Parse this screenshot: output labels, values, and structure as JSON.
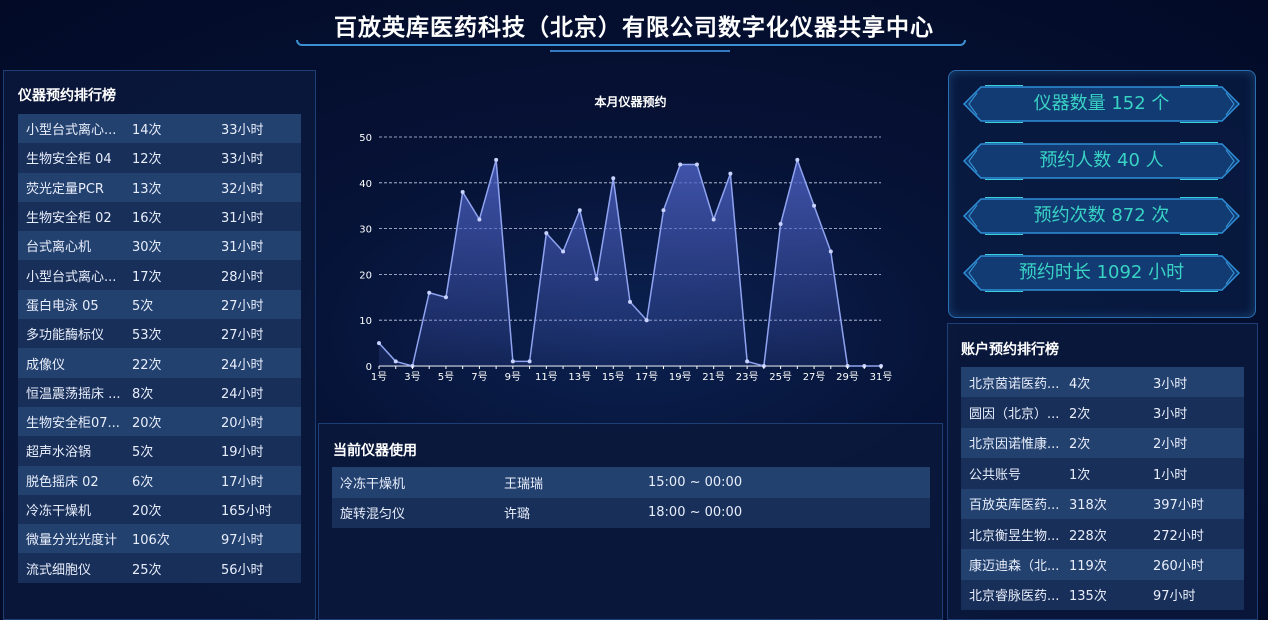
{
  "header": {
    "title": "百放英库医药科技（北京）有限公司数字化仪器共享中心"
  },
  "instrument_ranking": {
    "title": "仪器预约排行榜",
    "rows": [
      {
        "name": "小型台式离心...",
        "count": "14次",
        "hours": "33小时"
      },
      {
        "name": "生物安全柜 04",
        "count": "12次",
        "hours": "33小时"
      },
      {
        "name": "荧光定量PCR",
        "count": "13次",
        "hours": "32小时"
      },
      {
        "name": "生物安全柜 02",
        "count": "16次",
        "hours": "31小时"
      },
      {
        "name": "台式离心机",
        "count": "30次",
        "hours": "31小时"
      },
      {
        "name": "小型台式离心...",
        "count": "17次",
        "hours": "28小时"
      },
      {
        "name": "蛋白电泳 05",
        "count": "5次",
        "hours": "27小时"
      },
      {
        "name": "多功能酶标仪",
        "count": "53次",
        "hours": "27小时"
      },
      {
        "name": "成像仪",
        "count": "22次",
        "hours": "24小时"
      },
      {
        "name": "恒温震荡摇床 ...",
        "count": "8次",
        "hours": "24小时"
      },
      {
        "name": "生物安全柜07...",
        "count": "20次",
        "hours": "20小时"
      },
      {
        "name": "超声水浴锅",
        "count": "5次",
        "hours": "19小时"
      },
      {
        "name": "脱色摇床 02",
        "count": "6次",
        "hours": "17小时"
      },
      {
        "name": "冷冻干燥机",
        "count": "20次",
        "hours": "165小时"
      },
      {
        "name": "微量分光光度计",
        "count": "106次",
        "hours": "97小时"
      },
      {
        "name": "流式细胞仪",
        "count": "25次",
        "hours": "56小时"
      }
    ]
  },
  "chart_data": {
    "type": "area",
    "title": "本月仪器预约",
    "x": [
      "1号",
      "2号",
      "3号",
      "4号",
      "5号",
      "6号",
      "7号",
      "8号",
      "9号",
      "10号",
      "11号",
      "12号",
      "13号",
      "14号",
      "15号",
      "16号",
      "17号",
      "18号",
      "19号",
      "20号",
      "21号",
      "22号",
      "23号",
      "24号",
      "25号",
      "26号",
      "27号",
      "28号",
      "29号",
      "30号",
      "31号"
    ],
    "x_tick_labels": [
      "1号",
      "3号",
      "5号",
      "7号",
      "9号",
      "11号",
      "13号",
      "15号",
      "17号",
      "19号",
      "21号",
      "23号",
      "25号",
      "27号",
      "29号",
      "31号"
    ],
    "values": [
      5,
      1,
      0,
      16,
      15,
      38,
      32,
      45,
      1,
      1,
      29,
      25,
      34,
      19,
      41,
      14,
      10,
      34,
      44,
      44,
      32,
      42,
      1,
      0,
      31,
      45,
      35,
      25,
      0,
      0,
      0
    ],
    "ylim": [
      0,
      50
    ],
    "y_ticks": [
      "0",
      "10",
      "20",
      "30",
      "40",
      "50"
    ],
    "grid": true,
    "colors": {
      "line": "#8fa3f0",
      "fill": "#4a5fc0"
    }
  },
  "current_usage": {
    "title": "当前仪器使用",
    "rows": [
      {
        "instrument": "冷冻干燥机",
        "user": "王瑞瑞",
        "time": "15:00 ~ 00:00"
      },
      {
        "instrument": "旋转混匀仪",
        "user": "许璐",
        "time": "18:00 ~ 00:00"
      }
    ]
  },
  "stats": [
    {
      "label": "仪器数量 152 个"
    },
    {
      "label": "预约人数 40 人"
    },
    {
      "label": "预约次数 872 次"
    },
    {
      "label": "预约时长 1092 小时"
    }
  ],
  "account_ranking": {
    "title": "账户预约排行榜",
    "rows": [
      {
        "name": "北京茵诺医药...",
        "count": "4次",
        "hours": "3小时"
      },
      {
        "name": "圆因（北京）...",
        "count": "2次",
        "hours": "3小时"
      },
      {
        "name": "北京因诺惟康...",
        "count": "2次",
        "hours": "2小时"
      },
      {
        "name": "公共账号",
        "count": "1次",
        "hours": "1小时"
      },
      {
        "name": "百放英库医药...",
        "count": "318次",
        "hours": "397小时"
      },
      {
        "name": "北京衡昱生物...",
        "count": "228次",
        "hours": "272小时"
      },
      {
        "name": "康迈迪森（北...",
        "count": "119次",
        "hours": "260小时"
      },
      {
        "name": "北京睿脉医药...",
        "count": "135次",
        "hours": "97小时"
      }
    ]
  },
  "colors": {
    "accent": "#39d3c4",
    "background": "#030d2e",
    "row_a": "#23416f",
    "row_b": "#182f5a"
  }
}
